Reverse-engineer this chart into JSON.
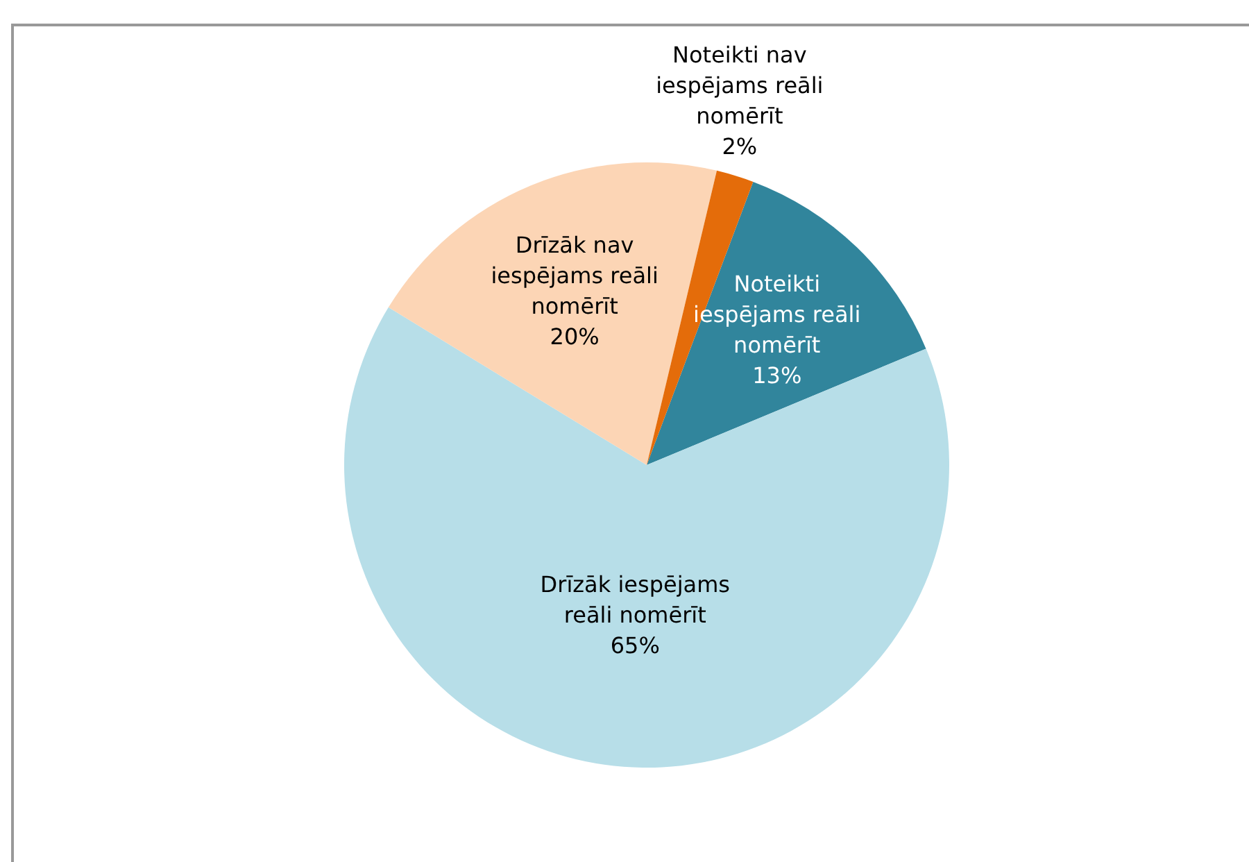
{
  "chart_data": {
    "type": "pie",
    "categories": [
      "Noteikti iespējams reāli nomērīt",
      "Drīzāk iespējams reāli nomērīt",
      "Drīzāk nav iespējams reāli nomērīt",
      "Noteikti nav iespējams reāli nomērīt"
    ],
    "values": [
      13,
      65,
      20,
      2
    ],
    "colors": [
      "#31859c",
      "#b7dee8",
      "#fcd5b5",
      "#e46c0a"
    ],
    "value_labels": [
      "13%",
      "65%",
      "20%",
      "2%"
    ]
  }
}
